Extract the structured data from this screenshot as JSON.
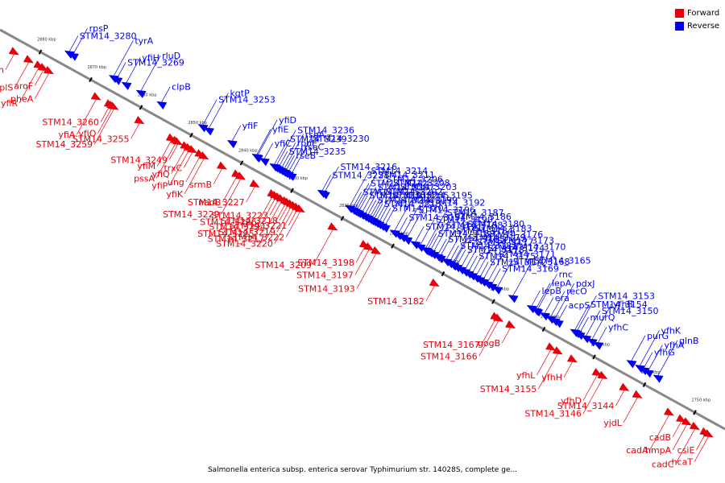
{
  "caption": "Salmonella enterica subsp. enterica serovar Typhimurium str. 14028S, complete ge...",
  "colors": {
    "forward": "#e8000b",
    "reverse": "#0000ee",
    "backbone": "#888888"
  },
  "legend": [
    {
      "label": "Forward",
      "color": "#e8000b"
    },
    {
      "label": "Reverse",
      "color": "#0000ee"
    }
  ],
  "genome_range_kbp": [
    2744,
    2888
  ],
  "ticks": [
    "2880 kbp",
    "2870 kbp",
    "2860 kbp",
    "2850 kbp",
    "2840 kbp",
    "2830 kbp",
    "2820 kbp",
    "2810 kbp",
    "2800 kbp",
    "2790 kbp",
    "2780 kbp",
    "2770 kbp",
    "2760 kbp",
    "2750 kbp"
  ],
  "reverse_genes": [
    {
      "name": "STM14_3280",
      "kbp": 2875.6
    },
    {
      "name": "rpsP",
      "kbp": 2874.8
    },
    {
      "name": "tyrA",
      "kbp": 2866.8
    },
    {
      "name": "STM14_3269",
      "kbp": 2866.1
    },
    {
      "name": "yfiH",
      "kbp": 2864.3
    },
    {
      "name": "rluD",
      "kbp": 2861.4
    },
    {
      "name": "clpB",
      "kbp": 2857.3
    },
    {
      "name": "STM14_3253",
      "kbp": 2849.1
    },
    {
      "name": "kgtP",
      "kbp": 2847.9
    },
    {
      "name": "yfiF",
      "kbp": 2843.3
    },
    {
      "name": "yfiE",
      "kbp": 2838.4
    },
    {
      "name": "yfiD",
      "kbp": 2838.2
    },
    {
      "name": "yfiC",
      "kbp": 2836.9
    },
    {
      "name": "STM14_3239",
      "kbp": 2834.9
    },
    {
      "name": "STM14_3236",
      "kbp": 2834.5
    },
    {
      "name": "STM14_3235",
      "kbp": 2834.0
    },
    {
      "name": "rpoE",
      "kbp": 2833.5
    },
    {
      "name": "rseA",
      "kbp": 2833.0
    },
    {
      "name": "rseB",
      "kbp": 2832.6
    },
    {
      "name": "rseC",
      "kbp": 2832.1
    },
    {
      "name": "STM14_3230",
      "kbp": 2831.5
    },
    {
      "name": "STM14_3228",
      "kbp": 2825.4
    },
    {
      "name": "STM14_3216",
      "kbp": 2824.9
    },
    {
      "name": "STM14_3214",
      "kbp": 2819.9
    },
    {
      "name": "STM14_3215",
      "kbp": 2819.3
    },
    {
      "name": "STM14_3212",
      "kbp": 2818.9
    },
    {
      "name": "STM14_3211",
      "kbp": 2818.5
    },
    {
      "name": "STM14_3210",
      "kbp": 2818.1
    },
    {
      "name": "STM14_3207",
      "kbp": 2817.5
    },
    {
      "name": "STM14_3206",
      "kbp": 2816.9
    },
    {
      "name": "STM14_3204",
      "kbp": 2816.4
    },
    {
      "name": "STM14_3202",
      "kbp": 2815.9
    },
    {
      "name": "STM14_3208",
      "kbp": 2815.5
    },
    {
      "name": "STM14_3213",
      "kbp": 2815.1
    },
    {
      "name": "STM14_3205",
      "kbp": 2814.6
    },
    {
      "name": "STM14_3203",
      "kbp": 2814.1
    },
    {
      "name": "STM14_3201",
      "kbp": 2813.5
    },
    {
      "name": "STM14_3199",
      "kbp": 2812.9
    },
    {
      "name": "STM14_3195",
      "kbp": 2811.0
    },
    {
      "name": "STM14_3194",
      "kbp": 2810.2
    },
    {
      "name": "STM14_3192",
      "kbp": 2808.5
    },
    {
      "name": "STM14_3196",
      "kbp": 2809.4
    },
    {
      "name": "STM14_3187",
      "kbp": 2804.8
    },
    {
      "name": "STM14_3191",
      "kbp": 2806.9
    },
    {
      "name": "STM14_3190",
      "kbp": 2805.9
    },
    {
      "name": "STM14_3189",
      "kbp": 2804.4
    },
    {
      "name": "STM14_3188",
      "kbp": 2803.9
    },
    {
      "name": "STM14_3186",
      "kbp": 2803.3
    },
    {
      "name": "STM14_3185",
      "kbp": 2802.4
    },
    {
      "name": "STM14_3184",
      "kbp": 2801.9
    },
    {
      "name": "STM14_3181",
      "kbp": 2800.0
    },
    {
      "name": "STM14_3179",
      "kbp": 2799.4
    },
    {
      "name": "STM14_3178",
      "kbp": 2798.6
    },
    {
      "name": "STM14_3177",
      "kbp": 2797.8
    },
    {
      "name": "STM14_3176",
      "kbp": 2797.0
    },
    {
      "name": "STM14_3175",
      "kbp": 2796.3
    },
    {
      "name": "STM14_3174",
      "kbp": 2795.6
    },
    {
      "name": "STM14_3173",
      "kbp": 2794.8
    },
    {
      "name": "STM14_3172",
      "kbp": 2794.1
    },
    {
      "name": "STM14_3180",
      "kbp": 2800.7
    },
    {
      "name": "STM14_3183",
      "kbp": 2799.2
    },
    {
      "name": "STM14_3171",
      "kbp": 2793.4
    },
    {
      "name": "STM14_3170",
      "kbp": 2792.5
    },
    {
      "name": "STM14_3169",
      "kbp": 2791.7
    },
    {
      "name": "STM14_3168",
      "kbp": 2790.6
    },
    {
      "name": "STM14_3165",
      "kbp": 2787.5
    },
    {
      "name": "rnc",
      "kbp": 2782.6
    },
    {
      "name": "lepA",
      "kbp": 2782.9
    },
    {
      "name": "era",
      "kbp": 2781.2
    },
    {
      "name": "recO",
      "kbp": 2780.0
    },
    {
      "name": "lepB",
      "kbp": 2783.8
    },
    {
      "name": "pdxJ",
      "kbp": 2779.2
    },
    {
      "name": "acpS",
      "kbp": 2778.5
    },
    {
      "name": "STM14_3154",
      "kbp": 2775.2
    },
    {
      "name": "STM14_3153",
      "kbp": 2774.8
    },
    {
      "name": "murQ",
      "kbp": 2774.2
    },
    {
      "name": "STM14_3150",
      "kbp": 2773.0
    },
    {
      "name": "yfhB",
      "kbp": 2771.8
    },
    {
      "name": "yfhC",
      "kbp": 2770.6
    },
    {
      "name": "purG",
      "kbp": 2764.0
    },
    {
      "name": "yfhK",
      "kbp": 2762.3
    },
    {
      "name": "yfhG",
      "kbp": 2761.5
    },
    {
      "name": "yfhA",
      "kbp": 2760.6
    },
    {
      "name": "glnB",
      "kbp": 2758.7
    }
  ],
  "forward_genes": [
    {
      "name": "ffh",
      "kbp": 2883.8
    },
    {
      "name": "rplS",
      "kbp": 2880.9
    },
    {
      "name": "aroF",
      "kbp": 2878.0
    },
    {
      "name": "pheA",
      "kbp": 2876.9
    },
    {
      "name": "yfiR",
      "kbp": 2878.9
    },
    {
      "name": "STM14_3260",
      "kbp": 2864.9
    },
    {
      "name": "yfiO",
      "kbp": 2864.4
    },
    {
      "name": "STM14_3259",
      "kbp": 2864.0
    },
    {
      "name": "yfiA",
      "kbp": 2867.5
    },
    {
      "name": "STM14_3255",
      "kbp": 2858.9
    },
    {
      "name": "yfiM",
      "kbp": 2852.6
    },
    {
      "name": "yfiQ",
      "kbp": 2849.8
    },
    {
      "name": "STM14_3249",
      "kbp": 2851.3
    },
    {
      "name": "trxC",
      "kbp": 2848.4
    },
    {
      "name": "yfiP",
      "kbp": 2849.1
    },
    {
      "name": "pssA",
      "kbp": 2851.7
    },
    {
      "name": "ung",
      "kbp": 2846.9
    },
    {
      "name": "srmB",
      "kbp": 2842.5
    },
    {
      "name": "yfiK",
      "kbp": 2846.1
    },
    {
      "name": "STM14_3229",
      "kbp": 2838.8
    },
    {
      "name": "STM14_3227",
      "kbp": 2836.0
    },
    {
      "name": "nadB",
      "kbp": 2839.6
    },
    {
      "name": "STM14_3223",
      "kbp": 2831.3
    },
    {
      "name": "STM14_3224",
      "kbp": 2830.7
    },
    {
      "name": "STM14_3226",
      "kbp": 2832.5
    },
    {
      "name": "STM14_3225",
      "kbp": 2831.9
    },
    {
      "name": "STM14_3217",
      "kbp": 2829.9
    },
    {
      "name": "STM14_3218",
      "kbp": 2829.4
    },
    {
      "name": "STM14_3219",
      "kbp": 2828.8
    },
    {
      "name": "STM14_3220",
      "kbp": 2828.2
    },
    {
      "name": "STM14_3221",
      "kbp": 2827.6
    },
    {
      "name": "STM14_3222",
      "kbp": 2827.0
    },
    {
      "name": "STM14_3209",
      "kbp": 2820.5
    },
    {
      "name": "STM14_3198",
      "kbp": 2814.2
    },
    {
      "name": "STM14_3197",
      "kbp": 2813.3
    },
    {
      "name": "STM14_3193",
      "kbp": 2811.9
    },
    {
      "name": "STM14_3182",
      "kbp": 2800.3
    },
    {
      "name": "STM14_3167",
      "kbp": 2788.2
    },
    {
      "name": "STM14_3166",
      "kbp": 2787.6
    },
    {
      "name": "gogB",
      "kbp": 2785.2
    },
    {
      "name": "yfhL",
      "kbp": 2777.2
    },
    {
      "name": "STM14_3155",
      "kbp": 2775.8
    },
    {
      "name": "yfhH",
      "kbp": 2772.9
    },
    {
      "name": "yfhD",
      "kbp": 2768.0
    },
    {
      "name": "STM14_3144",
      "kbp": 2762.6
    },
    {
      "name": "STM14_3146",
      "kbp": 2766.9
    },
    {
      "name": "yjdL",
      "kbp": 2760.0
    },
    {
      "name": "cadA",
      "kbp": 2753.7
    },
    {
      "name": "cadB",
      "kbp": 2751.3
    },
    {
      "name": "hmpA",
      "kbp": 2750.2
    },
    {
      "name": "cadC",
      "kbp": 2748.6
    },
    {
      "name": "csiE",
      "kbp": 2746.6
    },
    {
      "name": "hcaT",
      "kbp": 2745.9
    }
  ]
}
